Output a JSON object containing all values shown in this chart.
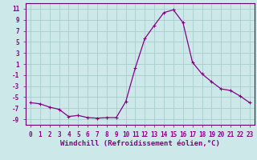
{
  "x": [
    0,
    1,
    2,
    3,
    4,
    5,
    6,
    7,
    8,
    9,
    10,
    11,
    12,
    13,
    14,
    15,
    16,
    17,
    18,
    19,
    20,
    21,
    22,
    23
  ],
  "y": [
    -6.0,
    -6.2,
    -6.8,
    -7.2,
    -8.5,
    -8.3,
    -8.7,
    -8.8,
    -8.7,
    -8.7,
    -5.8,
    0.3,
    5.6,
    8.0,
    10.3,
    10.8,
    8.5,
    1.3,
    -0.8,
    -2.2,
    -3.5,
    -3.8,
    -4.8,
    -6.0
  ],
  "line_color": "#880088",
  "marker": "+",
  "marker_size": 3,
  "marker_lw": 0.8,
  "bg_color": "#cce8e8",
  "grid_color": "#aacccc",
  "xlabel": "Windchill (Refroidissement éolien,°C)",
  "ylim": [
    -10,
    12
  ],
  "xlim": [
    -0.5,
    23.5
  ],
  "yticks": [
    -9,
    -7,
    -5,
    -3,
    -1,
    1,
    3,
    5,
    7,
    9,
    11
  ],
  "xticks": [
    0,
    1,
    2,
    3,
    4,
    5,
    6,
    7,
    8,
    9,
    10,
    11,
    12,
    13,
    14,
    15,
    16,
    17,
    18,
    19,
    20,
    21,
    22,
    23
  ],
  "tick_fontsize": 5.5,
  "xlabel_fontsize": 6.5,
  "spine_color": "#660066"
}
